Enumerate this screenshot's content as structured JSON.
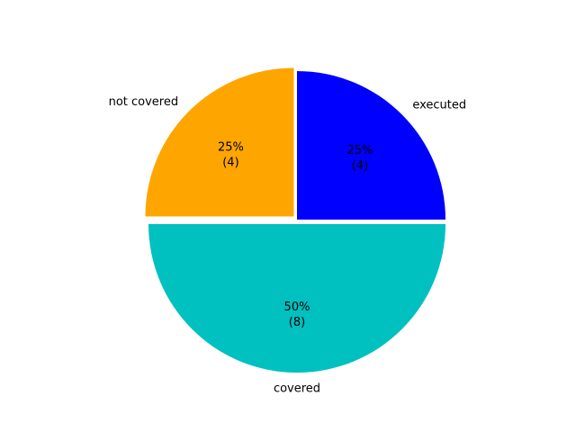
{
  "chart_data": {
    "type": "pie",
    "title": "",
    "slices": [
      {
        "label": "executed",
        "value": 4,
        "percent_label": "25%",
        "count_label": "(4)",
        "color": "#0000ff",
        "exploded": false
      },
      {
        "label": "not covered",
        "value": 4,
        "percent_label": "25%",
        "count_label": "(4)",
        "color": "#ffa500",
        "exploded": true
      },
      {
        "label": "covered",
        "value": 8,
        "percent_label": "50%",
        "count_label": "(8)",
        "color": "#00c0c0",
        "exploded": true
      }
    ],
    "start_angle_deg": 0,
    "direction": "counterclockwise",
    "legend": "none",
    "grid": false
  }
}
